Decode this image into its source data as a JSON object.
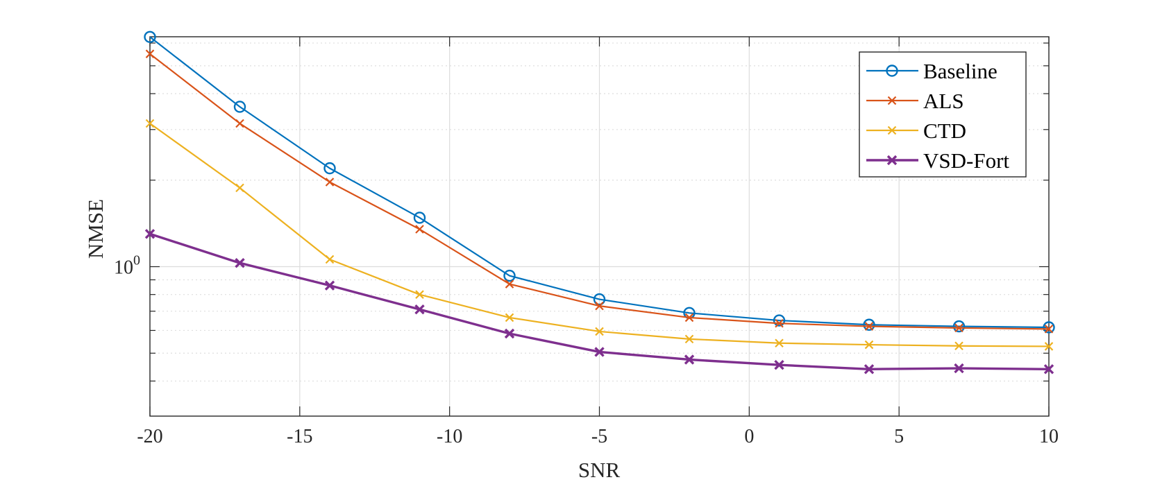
{
  "chart_data": {
    "type": "line",
    "title": "",
    "xlabel": "SNR",
    "ylabel": "NMSE",
    "xlim": [
      -20,
      10
    ],
    "ylim_log10": [
      -0.52,
      0.8
    ],
    "yscale": "log",
    "grid": true,
    "legend_position": "top-right",
    "x_ticks": [
      -20,
      -15,
      -10,
      -5,
      0,
      5,
      10
    ],
    "x_tick_labels": [
      "-20",
      "-15",
      "-10",
      "-5",
      "0",
      "5",
      "10"
    ],
    "y_tick_label": {
      "base": "10",
      "exponent": "0",
      "value": 1
    },
    "x": [
      -20,
      -17,
      -14,
      -11,
      -8,
      -5,
      -2,
      1,
      4,
      7,
      10
    ],
    "series": [
      {
        "name": "Baseline",
        "color": "#0072BD",
        "marker": "circle",
        "values": [
          6.3,
          3.6,
          2.2,
          1.48,
          0.93,
          0.77,
          0.69,
          0.65,
          0.628,
          0.62,
          0.615
        ]
      },
      {
        "name": "ALS",
        "color": "#D95319",
        "marker": "x",
        "values": [
          5.5,
          3.15,
          1.97,
          1.35,
          0.87,
          0.73,
          0.665,
          0.635,
          0.62,
          0.612,
          0.607
        ]
      },
      {
        "name": "CTD",
        "color": "#EDB120",
        "marker": "x",
        "values": [
          3.15,
          1.88,
          1.06,
          0.8,
          0.665,
          0.595,
          0.56,
          0.542,
          0.535,
          0.53,
          0.528
        ]
      },
      {
        "name": "VSD-Fort",
        "color": "#7E2F8E",
        "marker": "x",
        "bold": true,
        "values": [
          1.3,
          1.03,
          0.86,
          0.71,
          0.585,
          0.505,
          0.475,
          0.455,
          0.44,
          0.443,
          0.44
        ]
      }
    ]
  }
}
